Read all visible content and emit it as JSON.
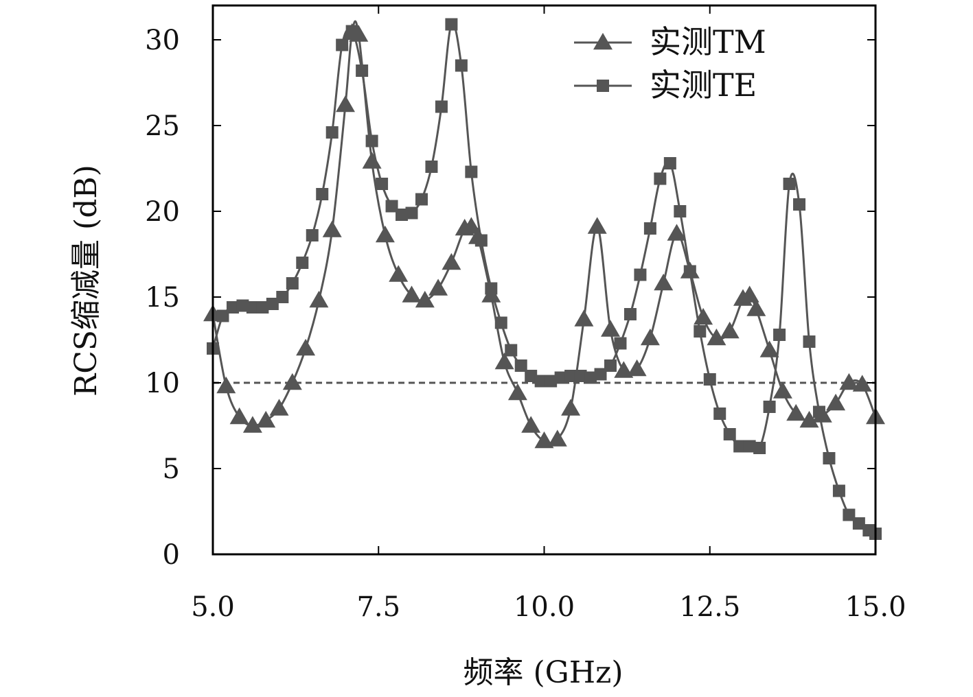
{
  "chart_data": {
    "type": "line",
    "xlabel": "频率 (GHz)",
    "ylabel": "RCS缩减量 (dB)",
    "xlim": [
      5.0,
      15.0
    ],
    "ylim": [
      0,
      32
    ],
    "xticks": [
      "5.0",
      "7.5",
      "10.0",
      "12.5",
      "15.0"
    ],
    "yticks": [
      "0",
      "5",
      "10",
      "15",
      "20",
      "25",
      "30"
    ],
    "reference_line": {
      "y": 10,
      "style": "dashed"
    },
    "legend_position": "top-right",
    "line_color": "#555555",
    "series": [
      {
        "name": "实测TM",
        "marker": "triangle",
        "x": [
          5.0,
          5.2,
          5.4,
          5.6,
          5.8,
          6.0,
          6.2,
          6.4,
          6.6,
          6.8,
          7.0,
          7.1,
          7.2,
          7.4,
          7.6,
          7.8,
          8.0,
          8.2,
          8.4,
          8.6,
          8.8,
          8.9,
          9.0,
          9.2,
          9.4,
          9.6,
          9.8,
          10.0,
          10.2,
          10.4,
          10.6,
          10.8,
          11.0,
          11.2,
          11.4,
          11.6,
          11.8,
          12.0,
          12.2,
          12.4,
          12.6,
          12.8,
          13.0,
          13.1,
          13.2,
          13.4,
          13.6,
          13.8,
          14.0,
          14.2,
          14.4,
          14.6,
          14.8,
          15.0
        ],
        "y": [
          14.0,
          9.8,
          8.0,
          7.5,
          7.8,
          8.5,
          10.0,
          12.0,
          14.8,
          18.9,
          26.2,
          30.4,
          30.3,
          22.9,
          18.6,
          16.3,
          15.1,
          14.8,
          15.5,
          17.0,
          19.0,
          19.1,
          18.5,
          15.1,
          11.2,
          9.4,
          7.5,
          6.6,
          6.7,
          8.5,
          13.7,
          19.1,
          13.1,
          10.7,
          10.8,
          12.6,
          15.8,
          18.7,
          16.5,
          13.8,
          12.6,
          13.0,
          14.9,
          15.1,
          14.3,
          11.9,
          9.5,
          8.2,
          7.8,
          8.1,
          8.8,
          10.0,
          9.9,
          8.0
        ]
      },
      {
        "name": "实测TE",
        "marker": "square",
        "x": [
          5.0,
          5.15,
          5.3,
          5.45,
          5.6,
          5.75,
          5.9,
          6.05,
          6.2,
          6.35,
          6.5,
          6.65,
          6.8,
          6.95,
          7.1,
          7.25,
          7.4,
          7.55,
          7.7,
          7.85,
          8.0,
          8.15,
          8.3,
          8.45,
          8.6,
          8.75,
          8.9,
          9.05,
          9.2,
          9.35,
          9.5,
          9.65,
          9.8,
          9.95,
          10.1,
          10.25,
          10.4,
          10.55,
          10.7,
          10.85,
          11.0,
          11.15,
          11.3,
          11.45,
          11.6,
          11.75,
          11.9,
          12.05,
          12.2,
          12.35,
          12.5,
          12.65,
          12.8,
          12.95,
          13.1,
          13.25,
          13.4,
          13.55,
          13.7,
          13.85,
          14.0,
          14.15,
          14.3,
          14.45,
          14.6,
          14.75,
          14.9,
          15.0
        ],
        "y": [
          12.0,
          13.9,
          14.4,
          14.5,
          14.4,
          14.4,
          14.6,
          15.0,
          15.8,
          17.0,
          18.6,
          21.0,
          24.6,
          29.7,
          30.5,
          28.2,
          24.1,
          21.6,
          20.3,
          19.8,
          19.9,
          20.7,
          22.6,
          26.1,
          30.9,
          28.5,
          22.3,
          18.3,
          15.5,
          13.5,
          11.9,
          11.0,
          10.4,
          10.1,
          10.1,
          10.3,
          10.4,
          10.4,
          10.3,
          10.5,
          11.0,
          12.3,
          14.0,
          16.3,
          19.0,
          21.9,
          22.8,
          20.0,
          16.5,
          13.0,
          10.2,
          8.2,
          7.0,
          6.3,
          6.3,
          6.2,
          8.6,
          12.8,
          21.6,
          20.4,
          12.4,
          8.3,
          5.6,
          3.7,
          2.3,
          1.8,
          1.4,
          1.2
        ]
      }
    ]
  }
}
